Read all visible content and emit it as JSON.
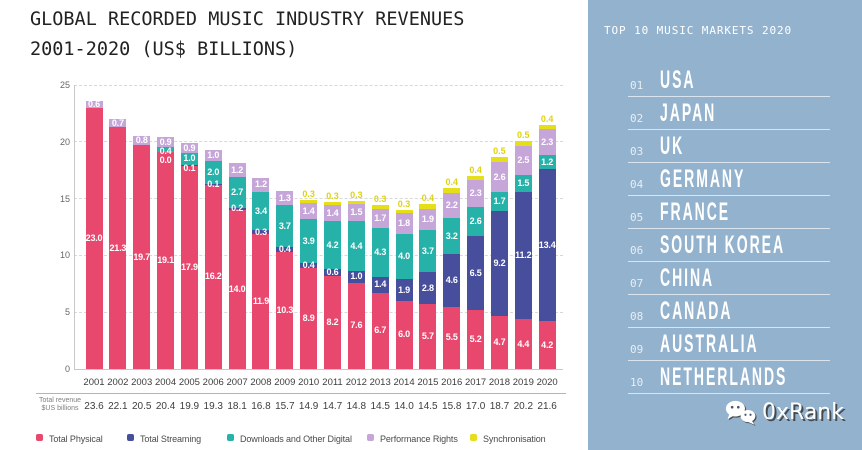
{
  "title": {
    "line1": "GLOBAL RECORDED MUSIC INDUSTRY REVENUES",
    "line2": "2001-2020 (US$ BILLIONS)"
  },
  "chart_data": {
    "type": "bar",
    "stacked": true,
    "title": "GLOBAL RECORDED MUSIC INDUSTRY REVENUES 2001-2020 (US$ BILLIONS)",
    "categories": [
      "2001",
      "2002",
      "2003",
      "2004",
      "2005",
      "2006",
      "2007",
      "2008",
      "2009",
      "2010",
      "2011",
      "2012",
      "2013",
      "2014",
      "2015",
      "2016",
      "2017",
      "2018",
      "2019",
      "2020"
    ],
    "series": [
      {
        "name": "Total Physical",
        "color": "#e8486e",
        "values": [
          23.0,
          21.3,
          19.7,
          19.1,
          17.9,
          16.2,
          14.0,
          11.9,
          10.3,
          8.9,
          8.2,
          7.6,
          6.7,
          6.0,
          5.7,
          5.5,
          5.2,
          4.7,
          4.4,
          4.2
        ]
      },
      {
        "name": "Total Streaming",
        "color": "#474f9d",
        "values": [
          null,
          null,
          null,
          0.0,
          0.1,
          0.1,
          0.2,
          0.3,
          0.4,
          0.4,
          0.6,
          1.0,
          1.4,
          1.9,
          2.8,
          4.6,
          6.5,
          9.2,
          11.2,
          13.4
        ]
      },
      {
        "name": "Downloads and Other Digital",
        "color": "#26b1a9",
        "values": [
          null,
          null,
          null,
          0.4,
          1.0,
          2.0,
          2.7,
          3.4,
          3.7,
          3.9,
          4.2,
          4.4,
          4.3,
          4.0,
          3.7,
          3.2,
          2.6,
          1.7,
          1.5,
          1.2
        ]
      },
      {
        "name": "Performance Rights",
        "color": "#c6a6d8",
        "values": [
          0.6,
          0.7,
          0.8,
          0.9,
          0.9,
          1.0,
          1.2,
          1.2,
          1.3,
          1.4,
          1.4,
          1.5,
          1.7,
          1.8,
          1.9,
          2.2,
          2.3,
          2.6,
          2.5,
          2.3
        ]
      },
      {
        "name": "Synchronisation",
        "color": "#e6de16",
        "values": [
          null,
          null,
          null,
          null,
          null,
          null,
          null,
          null,
          null,
          0.3,
          0.3,
          0.3,
          0.3,
          0.3,
          0.4,
          0.4,
          0.4,
          0.5,
          0.5,
          0.4
        ]
      }
    ],
    "totals": [
      "23.6",
      "22.1",
      "20.5",
      "20.4",
      "19.9",
      "19.3",
      "18.1",
      "16.8",
      "15.7",
      "14.9",
      "14.7",
      "14.8",
      "14.5",
      "14.0",
      "14.5",
      "15.8",
      "17.0",
      "18.7",
      "20.2",
      "21.6"
    ],
    "totals_caption_line1": "Total revenue",
    "totals_caption_line2": "$US billions",
    "yticks": [
      0,
      5,
      10,
      15,
      20,
      25
    ],
    "ylim": [
      0,
      25
    ],
    "grid": "dashed horizontal",
    "legend_position": "bottom"
  },
  "sidebar": {
    "title": "TOP 10 MUSIC MARKETS 2020",
    "panel_color": "#93b2ce",
    "items": [
      {
        "rank": "01",
        "name": "USA"
      },
      {
        "rank": "02",
        "name": "JAPAN"
      },
      {
        "rank": "03",
        "name": "UK"
      },
      {
        "rank": "04",
        "name": "GERMANY"
      },
      {
        "rank": "05",
        "name": "FRANCE"
      },
      {
        "rank": "06",
        "name": "SOUTH KOREA"
      },
      {
        "rank": "07",
        "name": "CHINA"
      },
      {
        "rank": "08",
        "name": "CANADA"
      },
      {
        "rank": "09",
        "name": "AUSTRALIA"
      },
      {
        "rank": "10",
        "name": "NETHERLANDS"
      }
    ]
  },
  "watermark": {
    "text": "0xRank",
    "icon": "wechat-icon"
  }
}
